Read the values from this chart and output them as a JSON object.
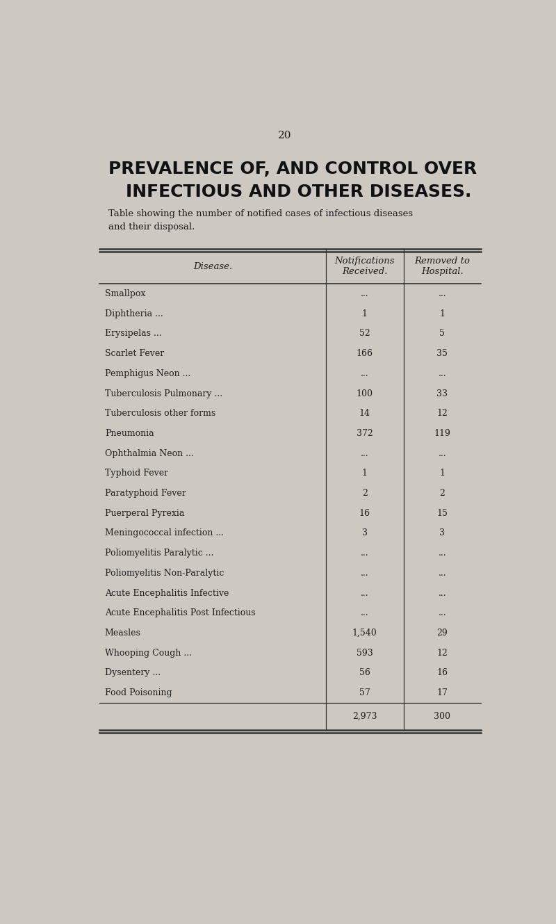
{
  "page_number": "20",
  "title_line1": "PREVALENCE OF, AND CONTROL OVER",
  "title_line2": "INFECTIOUS AND OTHER DISEASES.",
  "subtitle": "Table showing the number of notified cases of infectious diseases\nand their disposal.",
  "col_headers": [
    "Disease.",
    "Notifications\nReceived.",
    "Removed to\nHospital."
  ],
  "rows": [
    [
      "Smallpox",
      "...",
      "..."
    ],
    [
      "Diphtheria ...",
      "1",
      "1"
    ],
    [
      "Erysipelas ...",
      "52",
      "5"
    ],
    [
      "Scarlet Fever",
      "166",
      "35"
    ],
    [
      "Pemphigus Neon ...",
      "...",
      "..."
    ],
    [
      "Tuberculosis Pulmonary ...",
      "100",
      "33"
    ],
    [
      "Tuberculosis other forms",
      "14",
      "12"
    ],
    [
      "Pneumonia",
      "372",
      "119"
    ],
    [
      "Ophthalmia Neon ...",
      "...",
      "..."
    ],
    [
      "Typhoid Fever",
      "1",
      "1"
    ],
    [
      "Paratyphoid Fever",
      "2",
      "2"
    ],
    [
      "Puerperal Pyrexia",
      "16",
      "15"
    ],
    [
      "Meningococcal infection ...",
      "3",
      "3"
    ],
    [
      "Poliomyelitis Paralytic ...",
      "...",
      "..."
    ],
    [
      "Poliomyelitis Non-Paralytic",
      "...",
      "..."
    ],
    [
      "Acute Encephalitis Infective",
      "...",
      "..."
    ],
    [
      "Acute Encephalitis Post Infectious",
      "...",
      "..."
    ],
    [
      "Measles",
      "1,540",
      "29"
    ],
    [
      "Whooping Cough ...",
      "593",
      "12"
    ],
    [
      "Dysentery ...",
      "56",
      "16"
    ],
    [
      "Food Poisoning",
      "57",
      "17"
    ]
  ],
  "totals": [
    "2,973",
    "300"
  ],
  "bg_color": "#cdc9c2",
  "text_color": "#1e1e1e",
  "title_color": "#111111",
  "line_color": "#333333",
  "font_size_title": 18,
  "font_size_subtitle": 9.5,
  "font_size_header": 9.5,
  "font_size_body": 9,
  "font_size_page": 11
}
